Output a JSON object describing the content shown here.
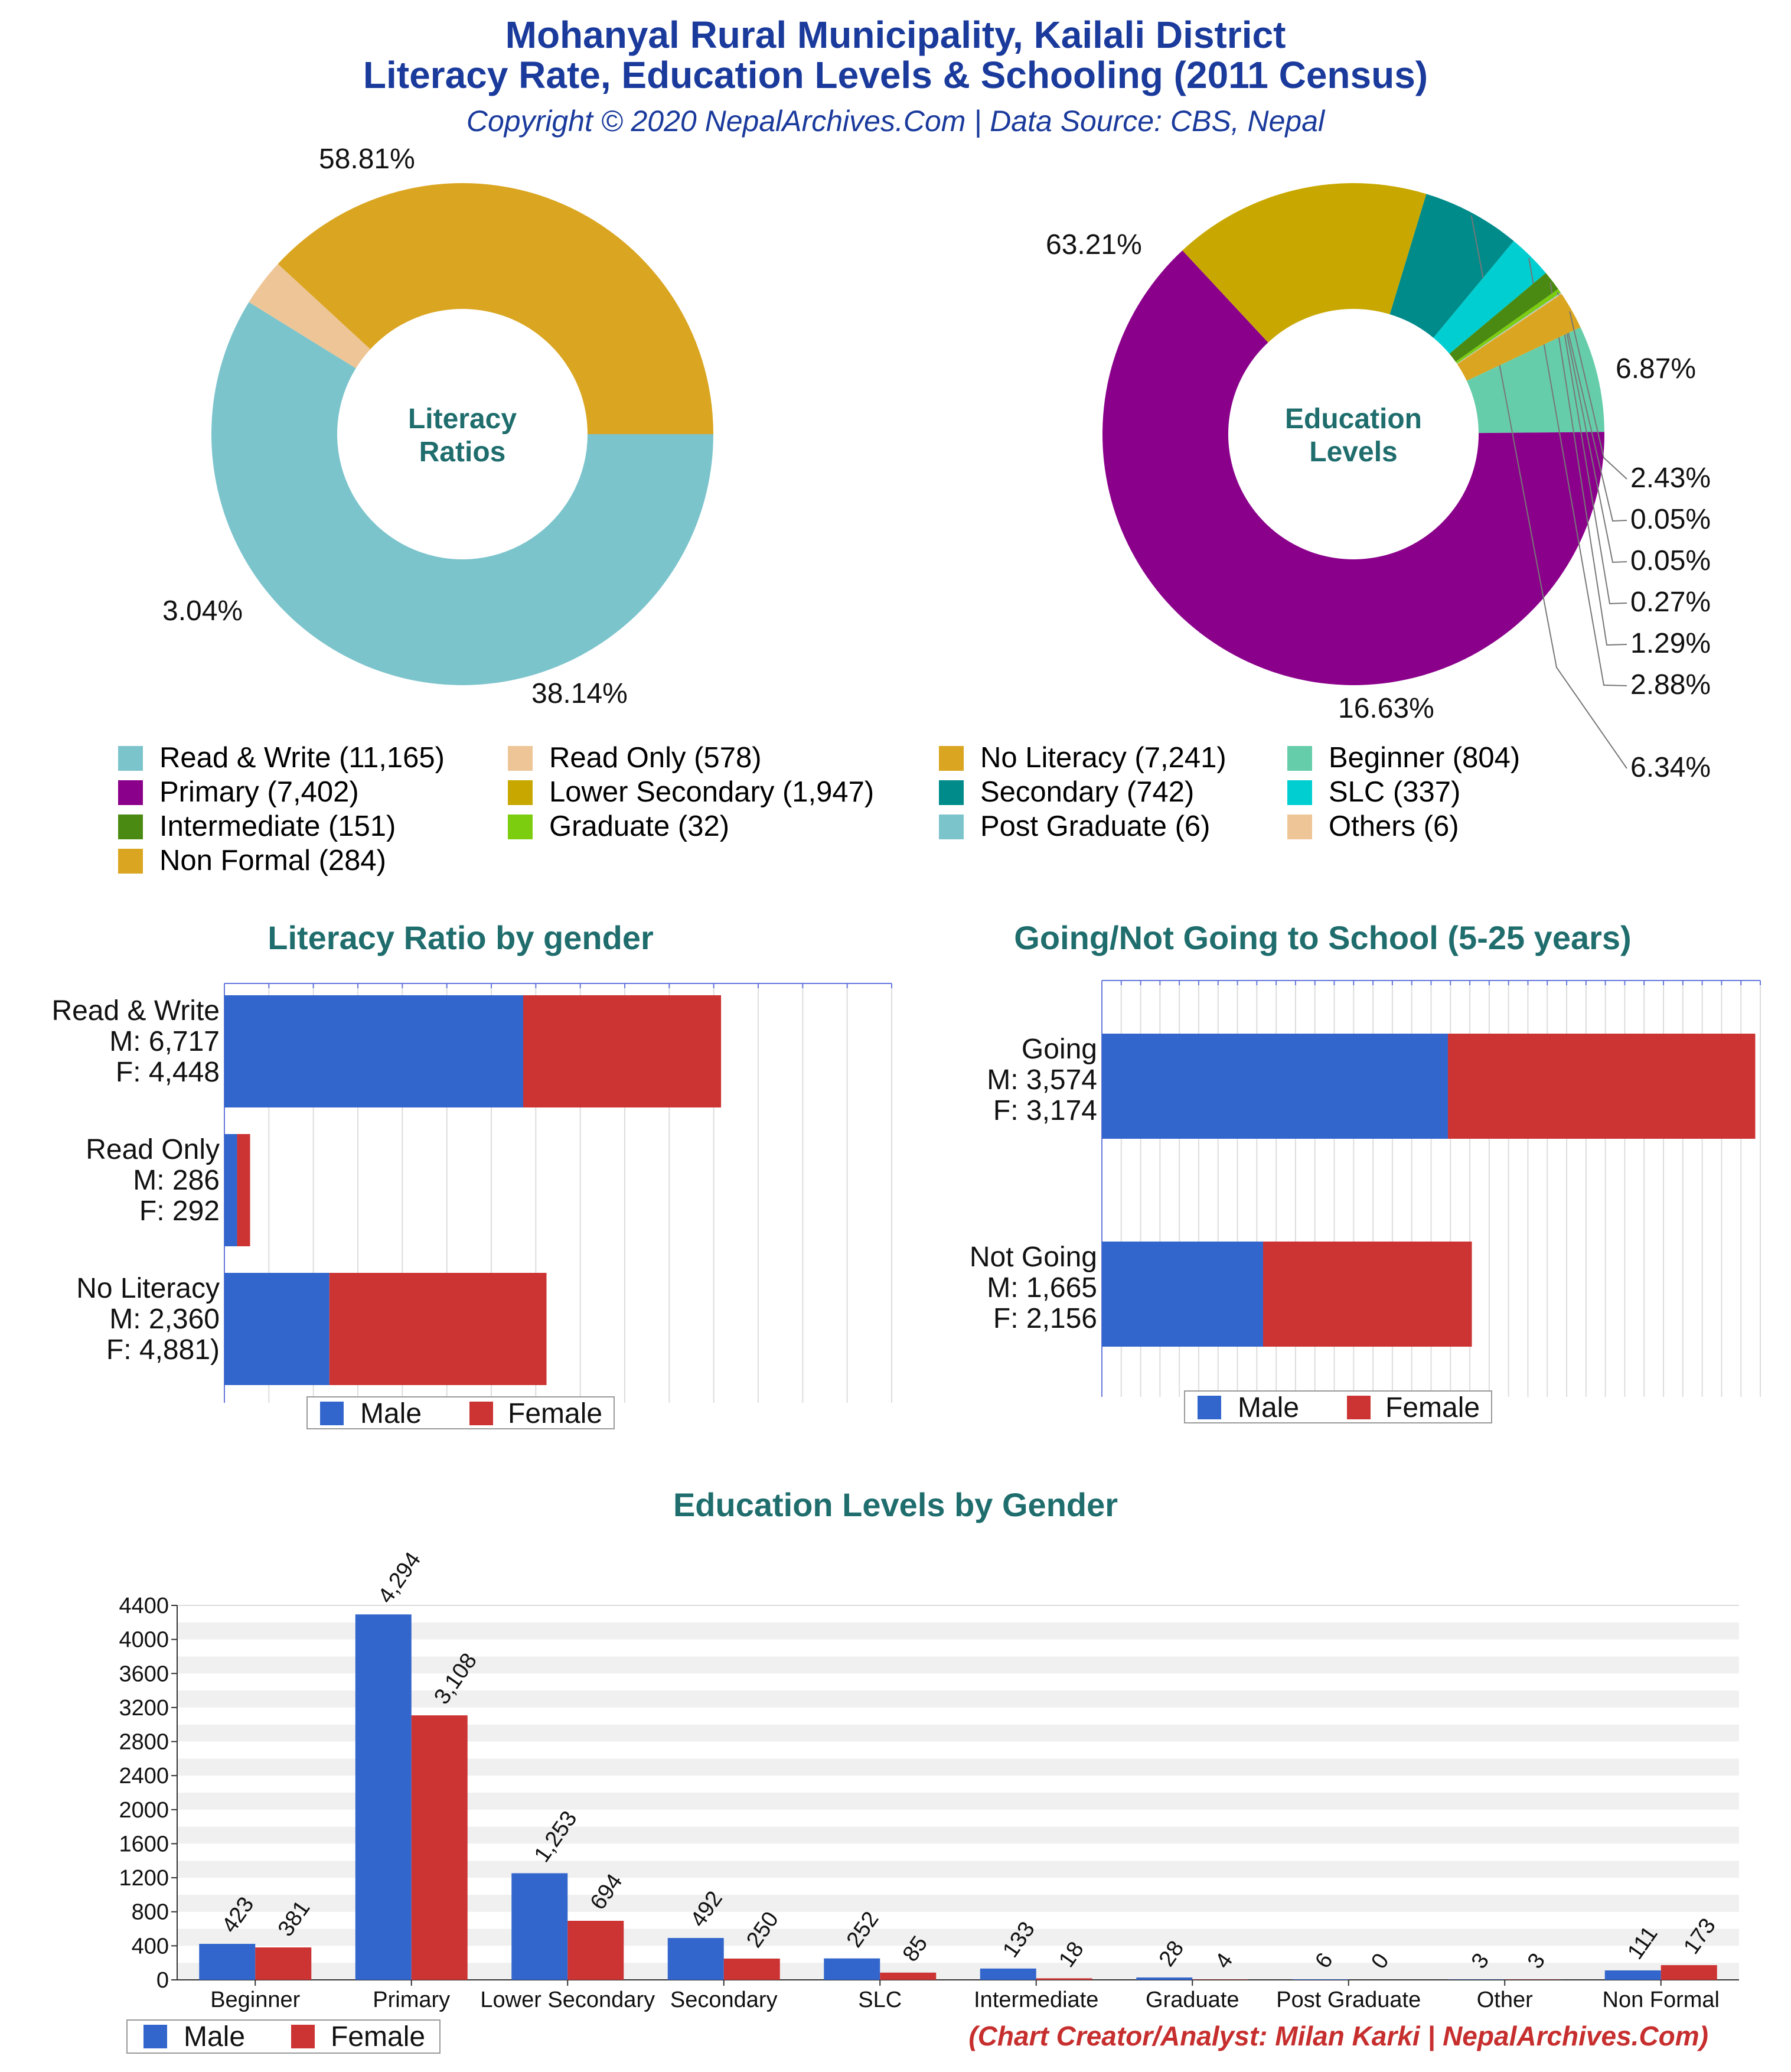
{
  "header": {
    "title_line1": "Mohanyal Rural Municipality, Kailali District",
    "title_line2": "Literacy Rate, Education Levels & Schooling (2011 Census)",
    "subtitle": "Copyright © 2020 NepalArchives.Com | Data Source: CBS, Nepal"
  },
  "footer": {
    "credit": "(Chart Creator/Analyst: Milan Karki | NepalArchives.Com)"
  },
  "colors": {
    "male": "#3366cc",
    "female": "#cc3333",
    "title_blue": "#1a3a9c",
    "section_teal": "#1f6d6d"
  },
  "chart_data": [
    {
      "type": "pie",
      "style": "donut",
      "center_label": [
        "Literacy",
        "Ratios"
      ],
      "categories": [
        "Read & Write",
        "Read Only",
        "No Literacy"
      ],
      "values": [
        11165,
        578,
        7241
      ],
      "percent_labels": [
        "58.81%",
        "3.04%",
        "38.14%"
      ],
      "colors": [
        "#7cc4cc",
        "#eec596",
        "#daa520"
      ]
    },
    {
      "type": "pie",
      "style": "donut",
      "center_label": [
        "Education",
        "Levels"
      ],
      "categories": [
        "Beginner",
        "Primary",
        "Lower Secondary",
        "Secondary",
        "SLC",
        "Intermediate",
        "Graduate",
        "Post Graduate",
        "Others",
        "Non Formal"
      ],
      "values": [
        804,
        7402,
        1947,
        742,
        337,
        151,
        32,
        6,
        6,
        284
      ],
      "percent_labels": [
        "6.87%",
        "63.21%",
        "16.63%",
        "6.34%",
        "2.88%",
        "1.29%",
        "0.27%",
        "0.05%",
        "0.05%",
        "2.43%"
      ],
      "colors": [
        "#66cdaa",
        "#8b008b",
        "#c8a800",
        "#008b8b",
        "#00ced1",
        "#4a8a12",
        "#7ccd10",
        "#7cc4cc",
        "#eec596",
        "#daa520"
      ]
    },
    {
      "type": "bar",
      "orientation": "horizontal",
      "stacked": true,
      "title": "Literacy Ratio by gender",
      "categories": [
        "Read & Write",
        "Read Only",
        "No Literacy"
      ],
      "category_labels": [
        [
          "Read & Write",
          "M: 6,717",
          "F: 4,448"
        ],
        [
          "Read Only",
          "M: 286",
          "F: 292"
        ],
        [
          "No Literacy",
          "M: 2,360",
          "F: 4,881)"
        ]
      ],
      "series": [
        {
          "name": "Male",
          "values": [
            6717,
            286,
            2360
          ]
        },
        {
          "name": "Female",
          "values": [
            4448,
            292,
            4881
          ]
        }
      ],
      "xlim": [
        0,
        15000
      ],
      "legend": "bottom"
    },
    {
      "type": "bar",
      "orientation": "horizontal",
      "stacked": true,
      "title": "Going/Not Going to School (5-25 years)",
      "categories": [
        "Going",
        "Not Going"
      ],
      "category_labels": [
        [
          "Going",
          "M: 3,574",
          "F: 3,174"
        ],
        [
          "Not Going",
          "M: 1,665",
          "F: 2,156"
        ]
      ],
      "series": [
        {
          "name": "Male",
          "values": [
            3574,
            1665
          ]
        },
        {
          "name": "Female",
          "values": [
            3174,
            2156
          ]
        }
      ],
      "xlim": [
        0,
        6800
      ],
      "legend": "bottom"
    },
    {
      "type": "bar",
      "title": "Education Levels by Gender",
      "categories": [
        "Beginner",
        "Primary",
        "Lower Secondary",
        "Secondary",
        "SLC",
        "Intermediate",
        "Graduate",
        "Post Graduate",
        "Other",
        "Non Formal"
      ],
      "series": [
        {
          "name": "Male",
          "values": [
            423,
            4294,
            1253,
            492,
            252,
            133,
            28,
            6,
            3,
            111
          ],
          "labels": [
            "423",
            "4,294",
            "1,253",
            "492",
            "252",
            "133",
            "28",
            "6",
            "3",
            "111"
          ]
        },
        {
          "name": "Female",
          "values": [
            381,
            3108,
            694,
            250,
            85,
            18,
            4,
            0,
            3,
            173
          ],
          "labels": [
            "381",
            "3,108",
            "694",
            "250",
            "85",
            "18",
            "4",
            "0",
            "3",
            "173"
          ]
        }
      ],
      "ylim": [
        0,
        4400
      ],
      "yticks": [
        "0",
        "400",
        "800",
        "1200",
        "1600",
        "2000",
        "2400",
        "2800",
        "3200",
        "3600",
        "4000",
        "4400"
      ],
      "legend": "bottom-left"
    }
  ],
  "legend_items": [
    "Read & Write (11,165)",
    "Read Only (578)",
    "No Literacy (7,241)",
    "Beginner (804)",
    "Primary (7,402)",
    "Lower Secondary (1,947)",
    "Secondary (742)",
    "SLC (337)",
    "Intermediate (151)",
    "Graduate (32)",
    "Post Graduate (6)",
    "Others (6)",
    "Non Formal (284)"
  ],
  "legend_colors": [
    "#7cc4cc",
    "#eec596",
    "#daa520",
    "#66cdaa",
    "#8b008b",
    "#c8a800",
    "#008b8b",
    "#00ced1",
    "#4a8a12",
    "#7ccd10",
    "#7cc4cc",
    "#eec596",
    "#daa520"
  ]
}
